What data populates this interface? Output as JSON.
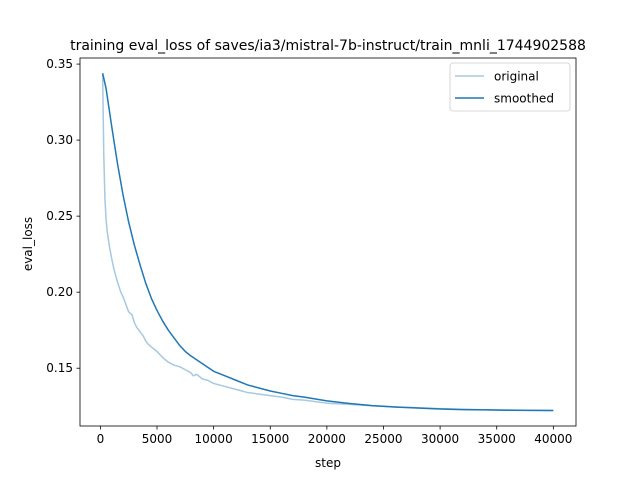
{
  "chart_data": {
    "type": "line",
    "title": "training eval_loss of saves/ia3/mistral-7b-instruct/train_mnli_1744902588",
    "xlabel": "step",
    "ylabel": "eval_loss",
    "xlim": [
      -1800,
      42000
    ],
    "ylim": [
      0.112,
      0.354
    ],
    "xticks": [
      0,
      5000,
      10000,
      15000,
      20000,
      25000,
      30000,
      35000,
      40000
    ],
    "yticks": [
      0.15,
      0.2,
      0.25,
      0.3,
      0.35
    ],
    "xtick_labels": [
      "0",
      "5000",
      "10000",
      "15000",
      "20000",
      "25000",
      "30000",
      "35000",
      "40000"
    ],
    "ytick_labels": [
      "0.15",
      "0.20",
      "0.25",
      "0.30",
      "0.35"
    ],
    "grid": false,
    "legend_position": "top-right",
    "series": [
      {
        "name": "original",
        "color": "#a6c8e3",
        "x": [
          200,
          300,
          400,
          500,
          600,
          800,
          1000,
          1200,
          1500,
          1800,
          2000,
          2200,
          2500,
          2800,
          3000,
          3200,
          3500,
          3800,
          4000,
          4200,
          4500,
          5000,
          5500,
          6000,
          6500,
          7000,
          7500,
          8000,
          8200,
          8500,
          9000,
          9500,
          10000,
          11000,
          12000,
          13000,
          14000,
          15000,
          16000,
          17000,
          18000,
          20000,
          22000,
          24000,
          26000,
          28000,
          30000,
          32000,
          34000,
          36000,
          38000,
          40000
        ],
        "y": [
          0.343,
          0.29,
          0.262,
          0.248,
          0.24,
          0.23,
          0.222,
          0.215,
          0.207,
          0.2,
          0.197,
          0.193,
          0.187,
          0.185,
          0.18,
          0.177,
          0.174,
          0.171,
          0.168,
          0.166,
          0.164,
          0.161,
          0.157,
          0.154,
          0.152,
          0.151,
          0.149,
          0.147,
          0.145,
          0.146,
          0.143,
          0.142,
          0.14,
          0.138,
          0.136,
          0.134,
          0.133,
          0.132,
          0.131,
          0.1295,
          0.129,
          0.127,
          0.1262,
          0.1253,
          0.1245,
          0.124,
          0.1234,
          0.123,
          0.1227,
          0.1225,
          0.1223,
          0.1222
        ]
      },
      {
        "name": "smoothed",
        "color": "#1f77b4",
        "x": [
          200,
          500,
          1000,
          1500,
          2000,
          2500,
          3000,
          3500,
          4000,
          4500,
          5000,
          5500,
          6000,
          6500,
          7000,
          7500,
          8000,
          9000,
          10000,
          11000,
          12000,
          13000,
          14000,
          15000,
          16000,
          17000,
          18000,
          20000,
          22000,
          24000,
          26000,
          28000,
          30000,
          32000,
          34000,
          36000,
          38000,
          40000
        ],
        "y": [
          0.344,
          0.334,
          0.309,
          0.285,
          0.264,
          0.246,
          0.231,
          0.218,
          0.206,
          0.196,
          0.188,
          0.181,
          0.175,
          0.17,
          0.165,
          0.161,
          0.158,
          0.153,
          0.148,
          0.145,
          0.142,
          0.139,
          0.137,
          0.135,
          0.1335,
          0.132,
          0.131,
          0.1285,
          0.1268,
          0.1254,
          0.1245,
          0.1238,
          0.1232,
          0.1228,
          0.1226,
          0.1224,
          0.1223,
          0.1222
        ]
      }
    ]
  }
}
